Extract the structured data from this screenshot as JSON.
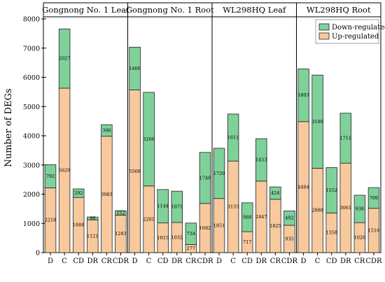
{
  "chart_data": {
    "type": "bar",
    "stacked": true,
    "ylabel": "Number of DEGs",
    "ylim": [
      0,
      8000
    ],
    "yticks": [
      0,
      1000,
      2000,
      3000,
      4000,
      5000,
      6000,
      7000,
      8000
    ],
    "categories": [
      "D",
      "C",
      "CD",
      "DR",
      "CR",
      "CDR"
    ],
    "legend": {
      "position": "top-right",
      "entries": [
        "Down-regulated",
        "Up-regulated"
      ]
    },
    "colors": {
      "down": "#7fd19a",
      "up": "#f8c99c",
      "stroke": "#222222"
    },
    "panels": [
      {
        "title": "Gongnong No. 1 Leaf",
        "up": [
          2218,
          5629,
          1888,
          1121,
          3983,
          1283
        ],
        "down": [
          792,
          2027,
          292,
          96,
          396,
          152
        ],
        "down_labels": [
          "792",
          "2027",
          "292",
          "96",
          "396",
          "152"
        ],
        "up_labels": [
          "2218",
          "5629",
          "1888",
          "1121",
          "3983",
          "1283"
        ]
      },
      {
        "title": "Gongnong No. 1 Root",
        "up": [
          5568,
          2281,
          1015,
          1032,
          277,
          1682
        ],
        "down": [
          1466,
          3206,
          1144,
          1071,
          734,
          1748
        ],
        "down_labels": [
          "1466",
          "3206",
          "1144",
          "1071",
          "734",
          "1748"
        ],
        "up_labels": [
          "5568",
          "2281",
          "1015",
          "1032",
          "277",
          "1682"
        ]
      },
      {
        "title": "WL298HQ Leaf",
        "up": [
          1851,
          3133,
          717,
          2447,
          1825,
          935
        ],
        "down": [
          1720,
          1611,
          988,
          1453,
          424,
          492
        ],
        "down_labels": [
          "1720",
          "1611",
          "988",
          "1453",
          "424",
          "492"
        ],
        "up_labels": [
          "1851",
          "3133",
          "717",
          "2447",
          "1825",
          "935"
        ]
      },
      {
        "title": "WL298HQ Root",
        "up": [
          4484,
          2888,
          1358,
          3061,
          1026,
          1516
        ],
        "down": [
          1803,
          3189,
          1552,
          1711,
          938,
          709
        ],
        "down_labels": [
          "1803",
          "3189",
          "1552",
          "1711",
          "938",
          "709"
        ],
        "up_labels": [
          "4484",
          "2888",
          "1358",
          "3061",
          "1026",
          "1516"
        ]
      }
    ]
  }
}
